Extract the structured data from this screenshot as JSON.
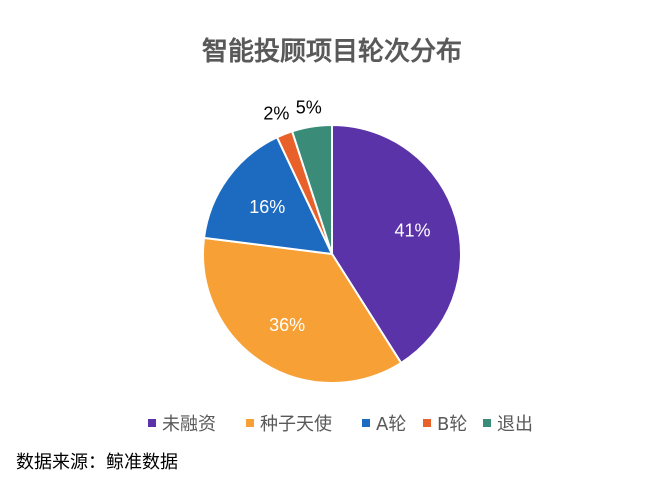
{
  "chart_data": {
    "type": "pie",
    "title": "智能投顾项目轮次分布",
    "categories": [
      "未融资",
      "种子天使",
      "A轮",
      "B轮",
      "退出"
    ],
    "values": [
      41,
      36,
      16,
      2,
      5
    ],
    "labels": [
      "41%",
      "36%",
      "16%",
      "2%",
      "5%"
    ],
    "colors": [
      "#5B33A8",
      "#F7A035",
      "#1C6BC0",
      "#E8612A",
      "#3A8C79"
    ],
    "legend_position": "bottom"
  },
  "source": "数据来源：鲸准数据"
}
